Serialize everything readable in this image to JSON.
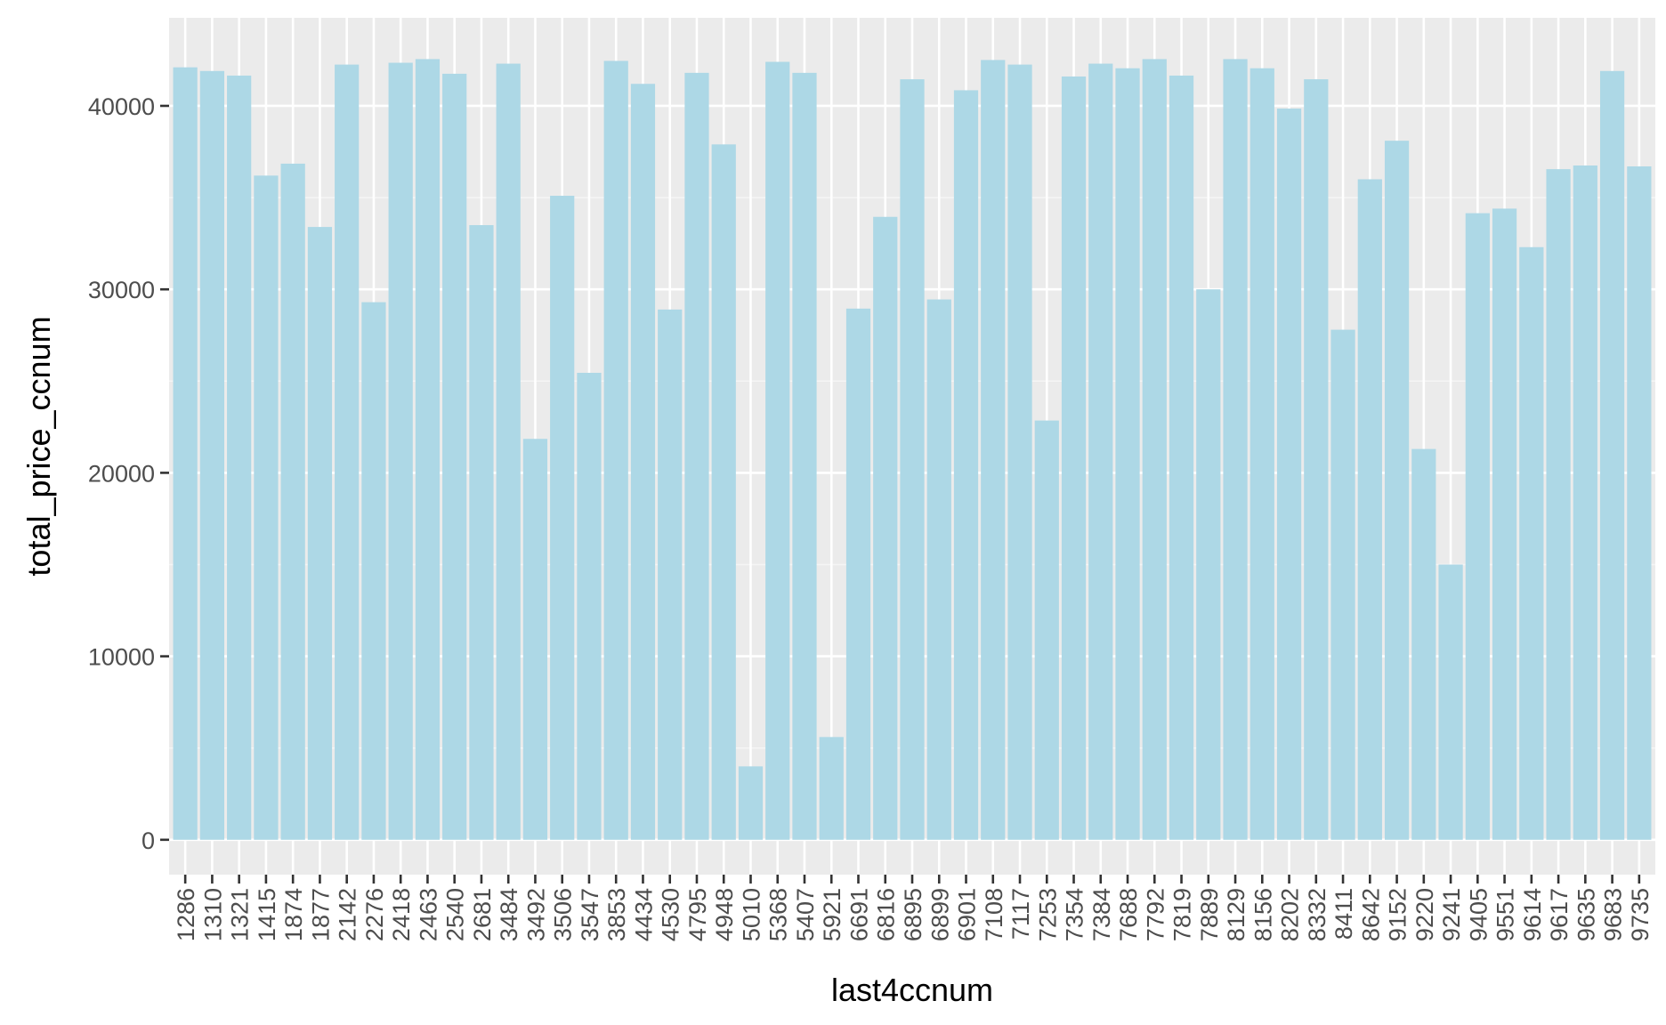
{
  "colors": {
    "panel_background": "#ebebeb",
    "grid_major": "#ffffff",
    "grid_minor": "#f5f5f5",
    "bar_fill": "#add8e6",
    "tick_color": "#333333",
    "tick_label_color": "#4d4d4d",
    "axis_title_color": "#000000"
  },
  "chart_data": {
    "type": "bar",
    "xlabel": "last4ccnum",
    "ylabel": "total_price_ccnum",
    "ylim": [
      -1900,
      44800
    ],
    "yticks": [
      0,
      10000,
      20000,
      30000,
      40000
    ],
    "grid": true,
    "legend": "none",
    "categories": [
      "1286",
      "1310",
      "1321",
      "1415",
      "1874",
      "1877",
      "2142",
      "2276",
      "2418",
      "2463",
      "2540",
      "2681",
      "3484",
      "3492",
      "3506",
      "3547",
      "3853",
      "4434",
      "4530",
      "4795",
      "4948",
      "5010",
      "5368",
      "5407",
      "5921",
      "6691",
      "6816",
      "6895",
      "6899",
      "6901",
      "7108",
      "7117",
      "7253",
      "7354",
      "7384",
      "7688",
      "7792",
      "7819",
      "7889",
      "8129",
      "8156",
      "8202",
      "8332",
      "8411",
      "8642",
      "9152",
      "9220",
      "9241",
      "9405",
      "9551",
      "9614",
      "9617",
      "9635",
      "9683",
      "9735"
    ],
    "values": [
      42100,
      41900,
      41650,
      36200,
      36850,
      33400,
      42250,
      29300,
      42350,
      42550,
      41750,
      33500,
      42300,
      21850,
      35100,
      25450,
      42450,
      41200,
      28900,
      41800,
      37900,
      4000,
      42400,
      41800,
      5600,
      28950,
      33950,
      41450,
      29450,
      40850,
      42500,
      42250,
      22850,
      41600,
      42300,
      42050,
      42550,
      41650,
      30000,
      42550,
      42050,
      39850,
      41450,
      27800,
      36000,
      38100,
      21300,
      15000,
      34150,
      34400,
      32300,
      36550,
      36750,
      41900,
      36700
    ]
  }
}
